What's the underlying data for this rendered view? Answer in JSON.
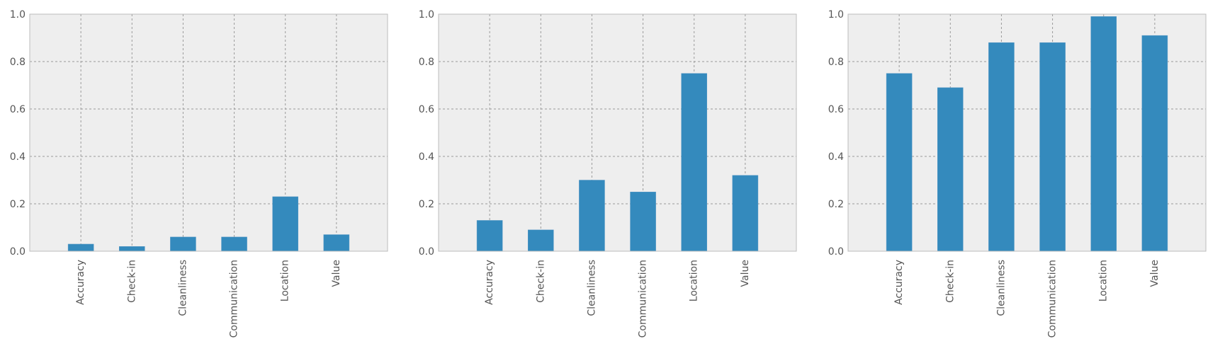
{
  "chart_data": [
    {
      "type": "bar",
      "categories": [
        "Accuracy",
        "Check-in",
        "Cleanliness",
        "Communication",
        "Location",
        "Value"
      ],
      "values": [
        0.03,
        0.02,
        0.06,
        0.06,
        0.23,
        0.07
      ],
      "ylim": [
        0,
        1
      ],
      "yticks": [
        "0.0",
        "0.2",
        "0.4",
        "0.6",
        "0.8",
        "1.0"
      ],
      "grid": true,
      "bar_color": "#348abd",
      "background_color": "#eeeeee"
    },
    {
      "type": "bar",
      "categories": [
        "Accuracy",
        "Check-in",
        "Cleanliness",
        "Communication",
        "Location",
        "Value"
      ],
      "values": [
        0.13,
        0.09,
        0.3,
        0.25,
        0.75,
        0.32
      ],
      "ylim": [
        0,
        1
      ],
      "yticks": [
        "0.0",
        "0.2",
        "0.4",
        "0.6",
        "0.8",
        "1.0"
      ],
      "grid": true,
      "bar_color": "#348abd",
      "background_color": "#eeeeee"
    },
    {
      "type": "bar",
      "categories": [
        "Accuracy",
        "Check-in",
        "Cleanliness",
        "Communication",
        "Location",
        "Value"
      ],
      "values": [
        0.75,
        0.69,
        0.88,
        0.88,
        0.99,
        0.91
      ],
      "ylim": [
        0,
        1
      ],
      "yticks": [
        "0.0",
        "0.2",
        "0.4",
        "0.6",
        "0.8",
        "1.0"
      ],
      "grid": true,
      "bar_color": "#348abd",
      "background_color": "#eeeeee"
    }
  ]
}
